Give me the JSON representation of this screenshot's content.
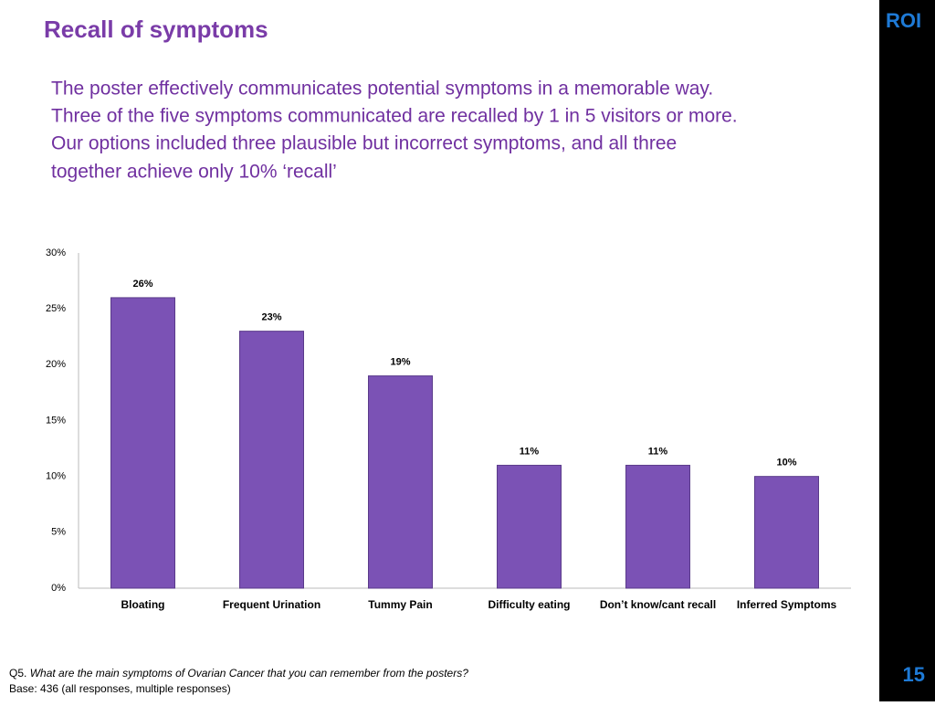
{
  "title": "Recall of symptoms",
  "body": [
    "The poster effectively communicates potential symptoms in a memorable way.",
    "Three of the five symptoms communicated are recalled by 1 in 5 visitors or more.",
    "Our options included three plausible but incorrect symptoms, and all three",
    "together achieve only 10% ‘recall’"
  ],
  "chart_data": {
    "type": "bar",
    "categories": [
      "Bloating",
      "Frequent Urination",
      "Tummy Pain",
      "Difficulty eating",
      "Don’t know/cant recall",
      "Inferred Symptoms"
    ],
    "values": [
      26,
      23,
      19,
      11,
      11,
      10
    ],
    "value_labels": [
      "26%",
      "23%",
      "19%",
      "11%",
      "11%",
      "10%"
    ],
    "color": "#7b52b5",
    "ylim": [
      0,
      30
    ],
    "yticks": [
      {
        "value": 0,
        "label": "0%"
      },
      {
        "value": 5,
        "label": "5%"
      },
      {
        "value": 10,
        "label": "10%"
      },
      {
        "value": 15,
        "label": "15%"
      },
      {
        "value": 20,
        "label": "20%"
      },
      {
        "value": 25,
        "label": "25%"
      },
      {
        "value": 30,
        "label": "30%"
      }
    ],
    "grid": false
  },
  "footnote": {
    "prefix": "Q5.",
    "question": "What are the main symptoms of Ovarian Cancer that you can remember from the posters?",
    "base": "Base: 436 (all responses, multiple responses)"
  },
  "logo": "ROI",
  "page_number": "15"
}
